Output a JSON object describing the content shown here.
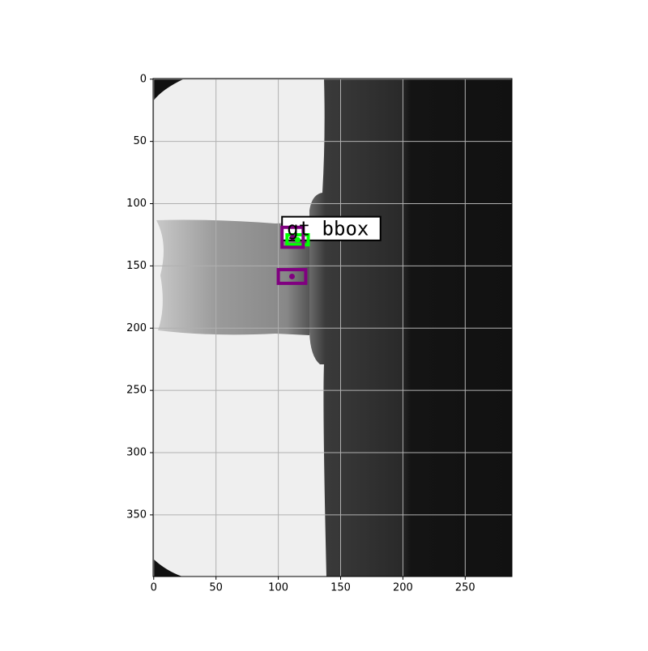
{
  "chart_data": {
    "type": "image",
    "xlim": [
      -0.5,
      287.5
    ],
    "ylim": [
      399.5,
      -0.5
    ],
    "xticks": [
      0,
      50,
      100,
      150,
      200,
      250
    ],
    "yticks": [
      0,
      50,
      100,
      150,
      200,
      250,
      300,
      350
    ],
    "grid": true,
    "label_box": {
      "text": "gt bbox",
      "x0": 103,
      "y0": 110.5,
      "x1": 182,
      "y1": 129.5,
      "color": "#000000"
    },
    "boxes": [
      {
        "x0": 107,
        "y0": 125,
        "x1": 124,
        "y1": 133,
        "color": "#00ff00"
      },
      {
        "x0": 103,
        "y0": 119,
        "x1": 120,
        "y1": 135,
        "color": "#800080"
      },
      {
        "x0": 100,
        "y0": 153,
        "x1": 122,
        "y1": 164,
        "color": "#800080"
      }
    ]
  }
}
